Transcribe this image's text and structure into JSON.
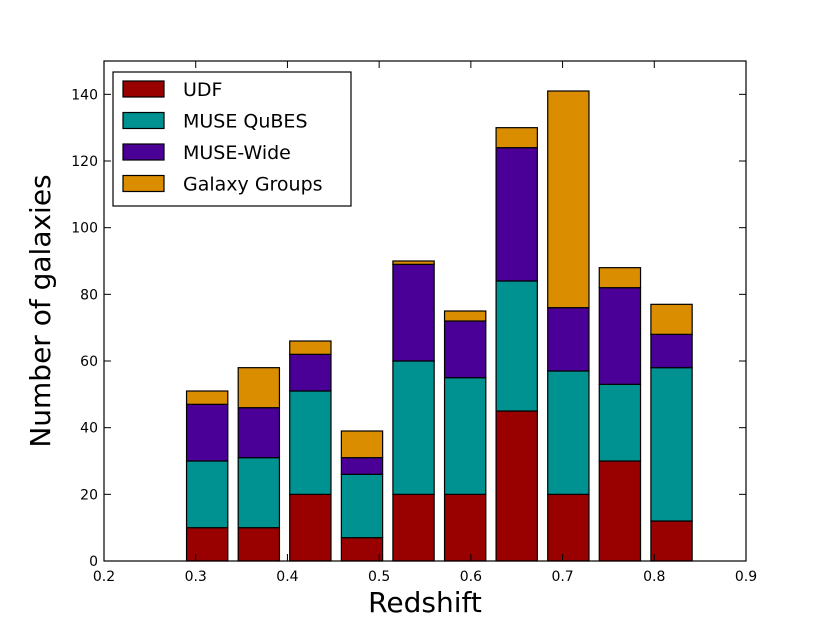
{
  "chart_data": {
    "type": "bar",
    "stacked": true,
    "title": "",
    "xlabel": "Redshift",
    "ylabel": "Number of galaxies",
    "xlim": [
      0.2,
      0.9
    ],
    "ylim": [
      0,
      150
    ],
    "bar_width": 0.045,
    "xticks": [
      0.2,
      0.3,
      0.4,
      0.5,
      0.6,
      0.7,
      0.8,
      0.9
    ],
    "xtick_labels": [
      "0.2",
      "0.3",
      "0.4",
      "0.5",
      "0.6",
      "0.7",
      "0.8",
      "0.9"
    ],
    "yticks": [
      0,
      20,
      40,
      60,
      80,
      100,
      120,
      140
    ],
    "ytick_labels": [
      "0",
      "20",
      "40",
      "60",
      "80",
      "100",
      "120",
      "140"
    ],
    "x": [
      0.3125,
      0.3688,
      0.425,
      0.4813,
      0.5375,
      0.5938,
      0.65,
      0.7063,
      0.7625,
      0.8188
    ],
    "legend_position": "upper-left",
    "series": [
      {
        "name": "UDF",
        "color": "#990000",
        "values": [
          10,
          10,
          20,
          7,
          20,
          20,
          45,
          20,
          30,
          12
        ]
      },
      {
        "name": "MUSE QuBES",
        "color": "#009191",
        "values": [
          20,
          21,
          31,
          19,
          40,
          35,
          39,
          37,
          23,
          46
        ]
      },
      {
        "name": "MUSE-Wide",
        "color": "#4a0096",
        "values": [
          17,
          15,
          11,
          5,
          29,
          17,
          40,
          19,
          29,
          10
        ]
      },
      {
        "name": "Galaxy Groups",
        "color": "#db8d00",
        "values": [
          4,
          12,
          4,
          8,
          1,
          3,
          6,
          65,
          6,
          9
        ]
      }
    ]
  }
}
